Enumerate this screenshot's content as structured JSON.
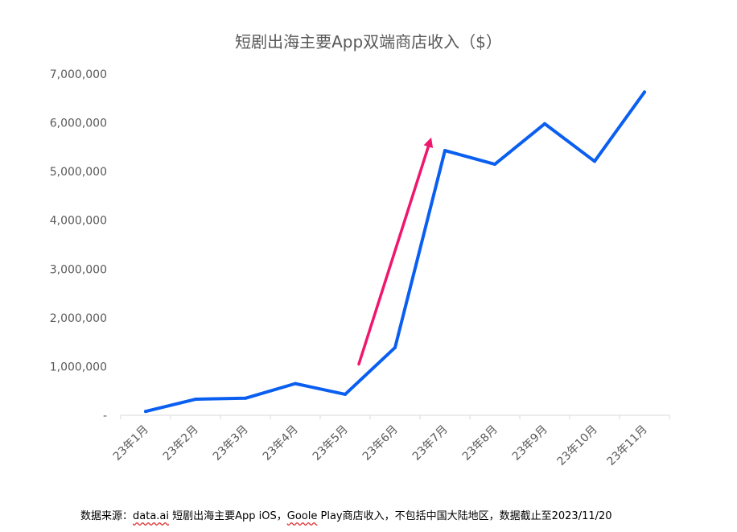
{
  "chart_data": {
    "type": "line",
    "title": "短剧出海主要App双端商店收入（$）",
    "xlabel": "",
    "ylabel": "",
    "categories": [
      "23年1月",
      "23年2月",
      "23年3月",
      "23年4月",
      "23年5月",
      "23年6月",
      "23年7月",
      "23年8月",
      "23年9月",
      "23年10月",
      "23年11月"
    ],
    "series": [
      {
        "values": [
          80000,
          330000,
          350000,
          650000,
          430000,
          1390000,
          5430000,
          5150000,
          5980000,
          5210000,
          6630000
        ]
      }
    ],
    "ylim": [
      0,
      7000000
    ],
    "yticks": [
      0,
      1000000,
      2000000,
      3000000,
      4000000,
      5000000,
      6000000,
      7000000
    ],
    "ytick_labels": [
      "-",
      "1,000,000",
      "2,000,000",
      "3,000,000",
      "4,000,000",
      "5,000,000",
      "6,000,000",
      "7,000,000"
    ],
    "grid": false,
    "legend": "none",
    "annotations": [
      {
        "type": "arrow",
        "from": {
          "x": "23年5月",
          "y": 1050000
        },
        "to": {
          "x": "23年7月",
          "y": 5700000
        }
      }
    ]
  },
  "source": {
    "prefix": "数据来源：",
    "marked_1": "data.ai",
    "middle": " 短剧出海主要App iOS，",
    "marked_2": "Goole",
    "suffix": " Play商店收入，不包括中国大陆地区，数据截止至2023/11/20"
  },
  "colors": {
    "line": "#0a5ff0",
    "arrow": "#f0166e",
    "axis": "#d9d9d9",
    "tick_text": "#595959",
    "title": "#595959"
  }
}
